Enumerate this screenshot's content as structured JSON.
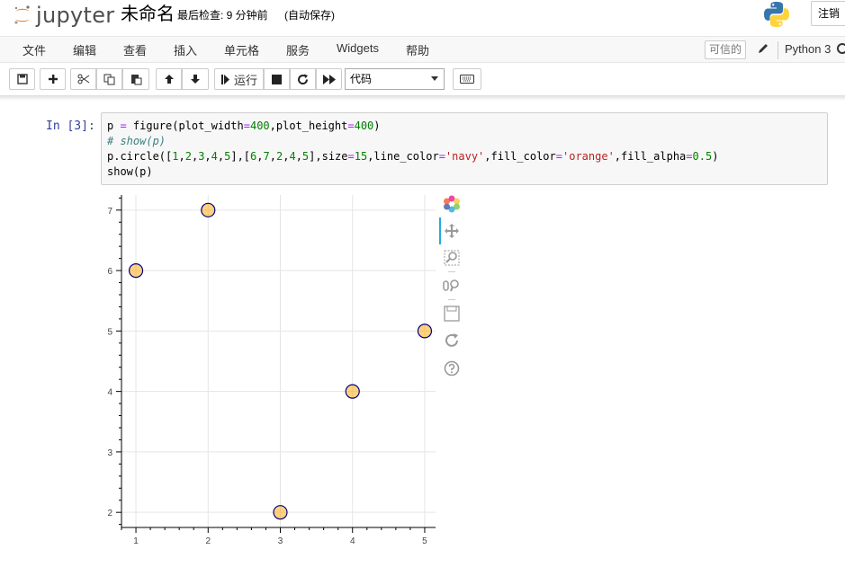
{
  "header": {
    "logo_text": "jupyter",
    "notebook_name": "未命名",
    "checkpoint": "最后检查: 9 分钟前",
    "autosave": "(自动保存)",
    "logout_label": "注销"
  },
  "menubar": {
    "items": [
      "文件",
      "编辑",
      "查看",
      "插入",
      "单元格",
      "服务",
      "Widgets",
      "帮助"
    ],
    "trusted": "可信的",
    "kernel_name": "Python 3"
  },
  "toolbar": {
    "run_label": "运行",
    "cell_type": "代码",
    "icons": [
      "save-icon",
      "plus-icon",
      "cut-icon",
      "copy-icon",
      "paste-icon",
      "arrow-up-icon",
      "arrow-down-icon",
      "step-forward-icon",
      "stop-icon",
      "restart-icon",
      "fast-forward-icon",
      "keyboard-icon"
    ]
  },
  "cell": {
    "prompt": "In  [3]:",
    "code_lines": [
      "p = figure(plot_width=400,plot_height=400)",
      "# show(p)",
      "p.circle([1,2,3,4,5],[6,7,2,4,5],size=15,line_color='navy',fill_color='orange',fill_alpha=0.5)",
      "show(p)"
    ]
  },
  "chart_data": {
    "type": "scatter",
    "x": [
      1,
      2,
      3,
      4,
      5
    ],
    "y": [
      6,
      7,
      2,
      4,
      5
    ],
    "title": "",
    "xlabel": "",
    "ylabel": "",
    "xlim": [
      0.8,
      5.2
    ],
    "ylim": [
      1.75,
      7.25
    ],
    "xticks": [
      "1",
      "2",
      "3",
      "4",
      "5"
    ],
    "yticks": [
      "2",
      "3",
      "4",
      "5",
      "6",
      "7"
    ],
    "grid": true,
    "marker": {
      "line_color": "#000080",
      "fill_color": "#ffa500",
      "fill_alpha": 0.5
    },
    "tools": [
      "bokeh-logo-icon",
      "pan-icon",
      "box-zoom-icon",
      "wheel-zoom-icon",
      "save-icon",
      "reset-icon",
      "help-icon"
    ]
  }
}
